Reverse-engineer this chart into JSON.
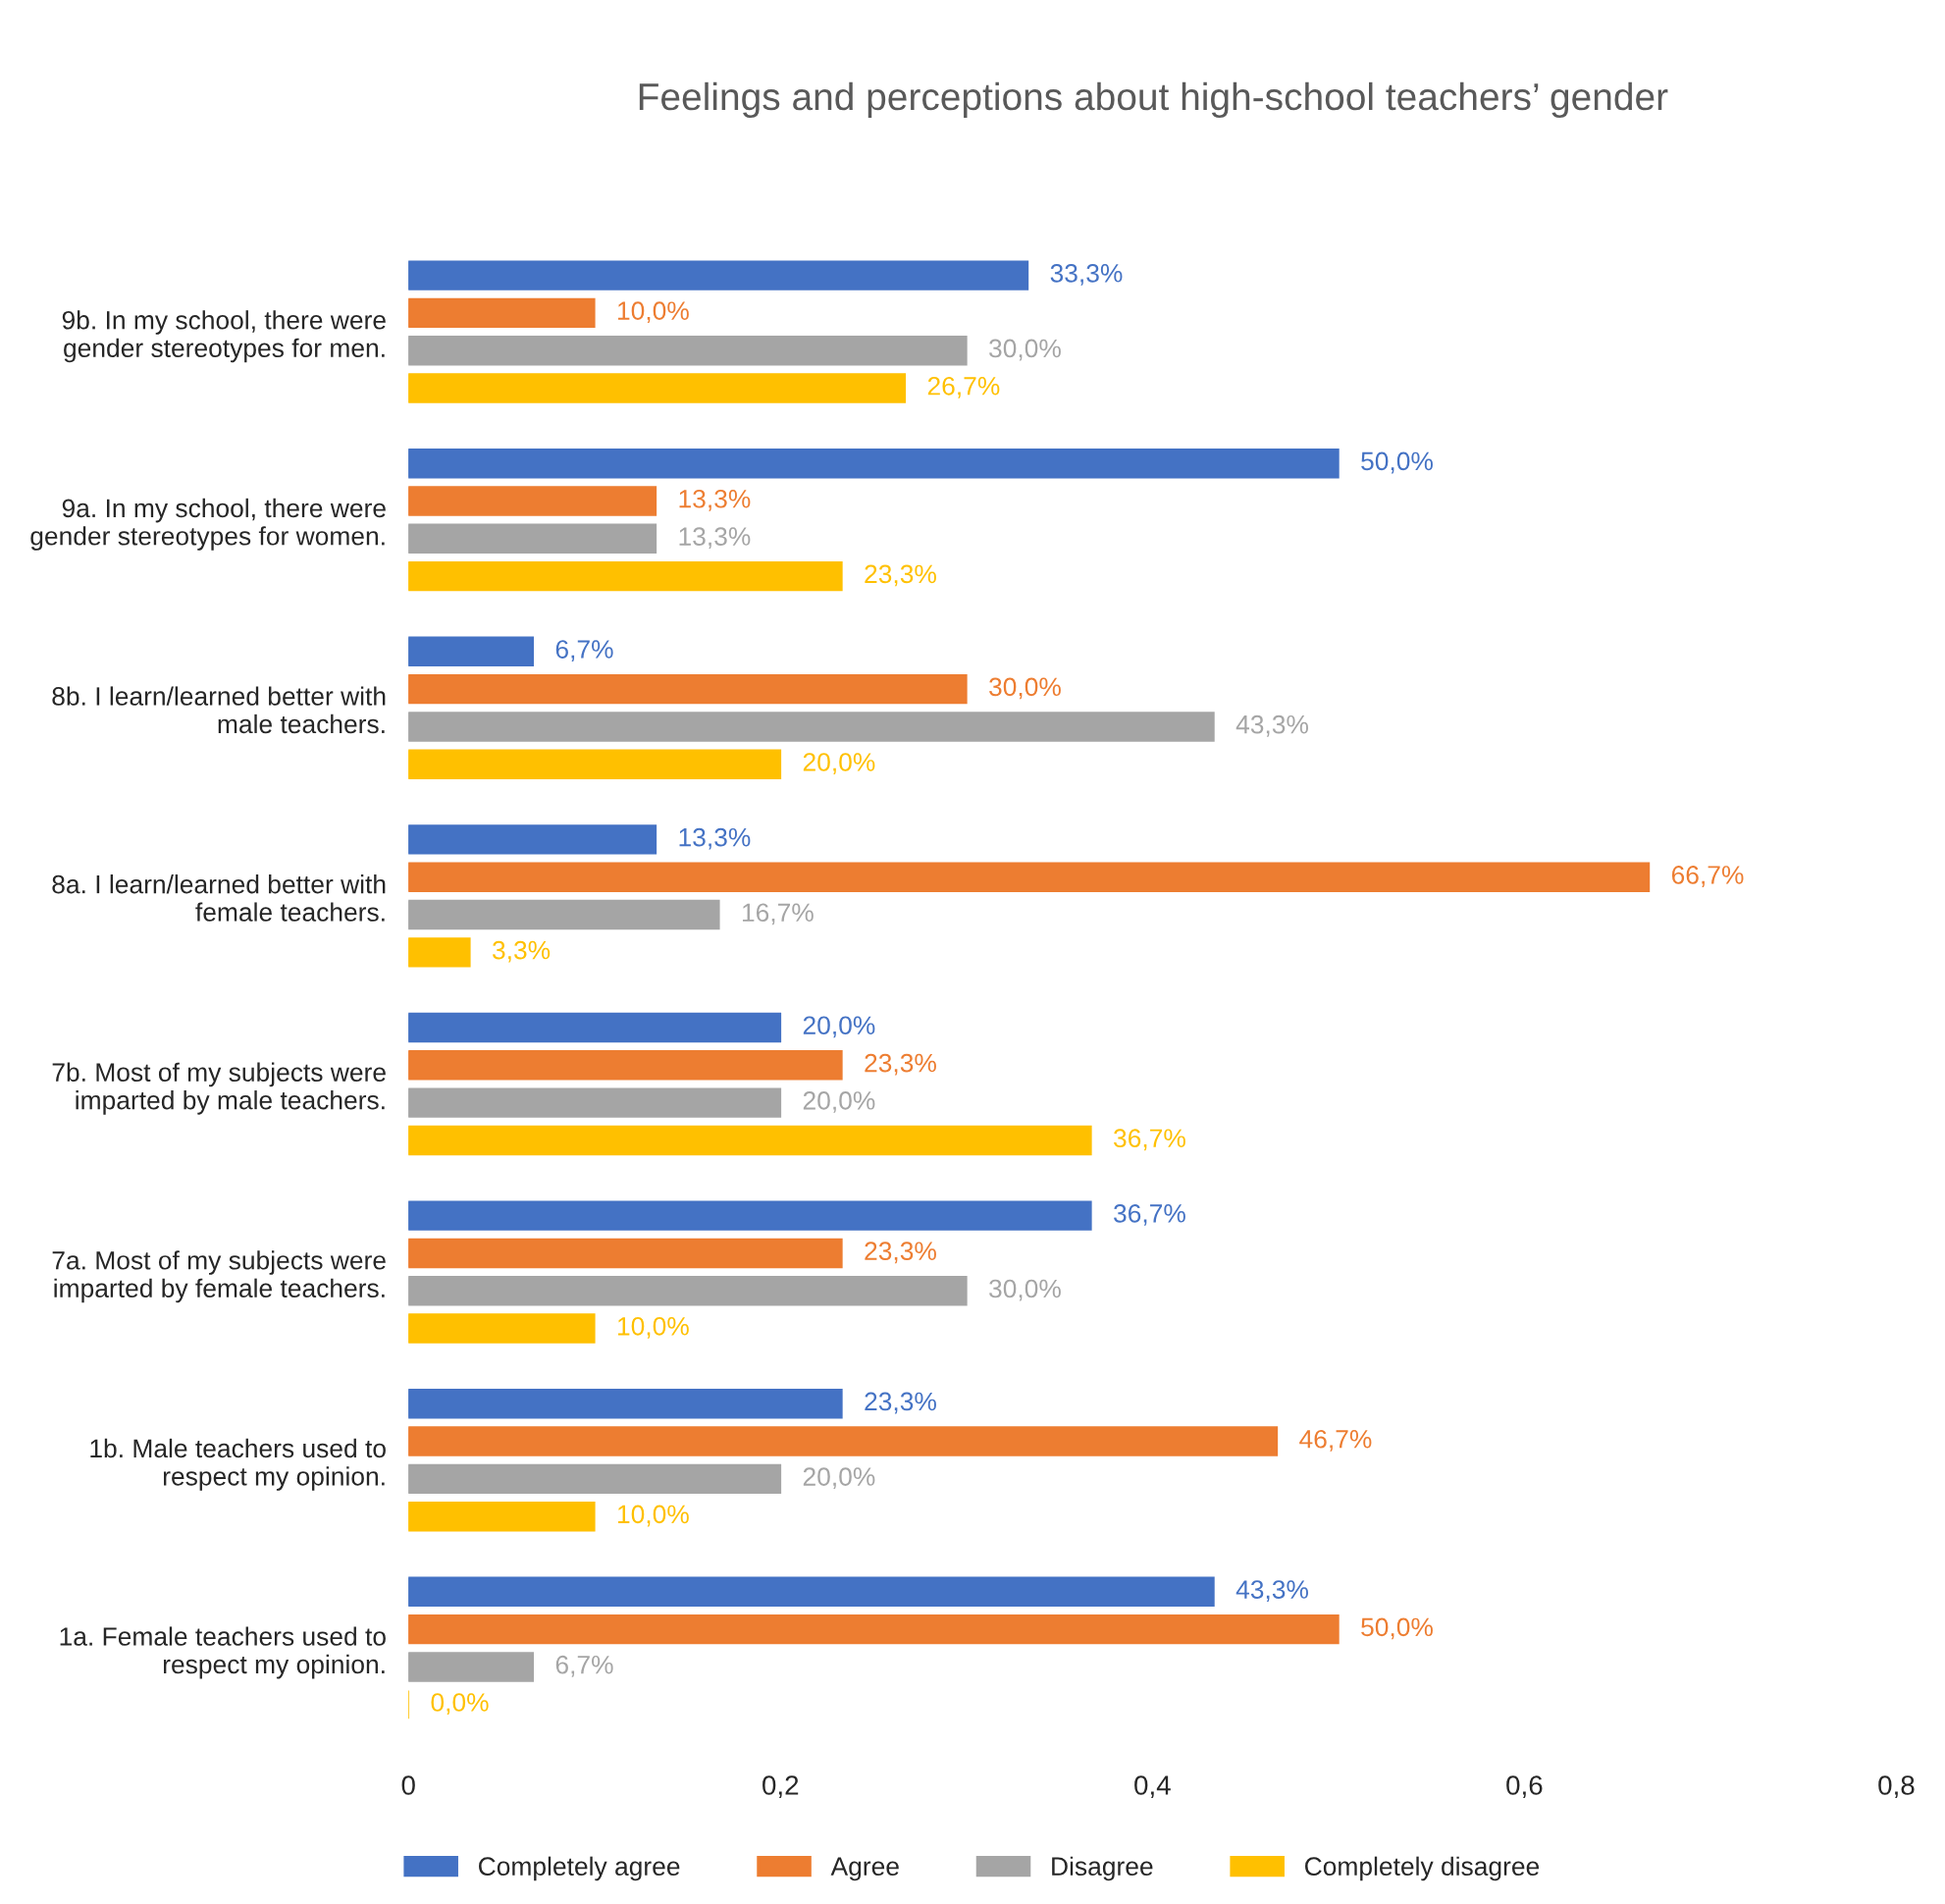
{
  "chart_data": {
    "type": "bar",
    "orientation": "horizontal",
    "title": "Feelings and perceptions about high-school teachers’ gender",
    "categories": [
      "9b. In my school, there were\ngender stereotypes for men.",
      "9a. In my school, there were\ngender stereotypes for women.",
      "8b. I learn/learned better with\nmale teachers.",
      "8a. I learn/learned better with\nfemale teachers.",
      "7b. Most of my subjects were\nimparted by male teachers.",
      "7a. Most of my subjects were\nimparted by female teachers.",
      "1b. Male teachers used to\nrespect my opinion.",
      "1a. Female teachers used to\nrespect my opinion."
    ],
    "series": [
      {
        "name": "Completely agree",
        "color": "#4472c4",
        "values": [
          0.333,
          0.5,
          0.067,
          0.133,
          0.2,
          0.367,
          0.233,
          0.433
        ],
        "value_labels": [
          "33,3%",
          "50,0%",
          "6,7%",
          "13,3%",
          "20,0%",
          "36,7%",
          "23,3%",
          "43,3%"
        ]
      },
      {
        "name": "Agree",
        "color": "#ed7d31",
        "values": [
          0.1,
          0.133,
          0.3,
          0.667,
          0.233,
          0.233,
          0.467,
          0.5
        ],
        "value_labels": [
          "10,0%",
          "13,3%",
          "30,0%",
          "66,7%",
          "23,3%",
          "23,3%",
          "46,7%",
          "50,0%"
        ]
      },
      {
        "name": "Disagree",
        "color": "#a5a5a5",
        "values": [
          0.3,
          0.133,
          0.433,
          0.167,
          0.2,
          0.3,
          0.2,
          0.067
        ],
        "value_labels": [
          "30,0%",
          "13,3%",
          "43,3%",
          "16,7%",
          "20,0%",
          "30,0%",
          "20,0%",
          "6,7%"
        ]
      },
      {
        "name": "Completely disagree",
        "color": "#ffc000",
        "values": [
          0.267,
          0.233,
          0.2,
          0.033,
          0.367,
          0.1,
          0.1,
          0.0
        ],
        "value_labels": [
          "26,7%",
          "23,3%",
          "20,0%",
          "3,3%",
          "36,7%",
          "10,0%",
          "10,0%",
          "0,0%"
        ]
      }
    ],
    "xlim": [
      0,
      0.8
    ],
    "xticks": [
      0,
      {
        "value": 0.2,
        "label": "0,2"
      },
      {
        "value": 0.4,
        "label": "0,4"
      },
      {
        "value": 0.6,
        "label": "0,6"
      },
      {
        "value": 0.8,
        "label": "0,8"
      }
    ],
    "grid": false,
    "legend": "bottom"
  }
}
